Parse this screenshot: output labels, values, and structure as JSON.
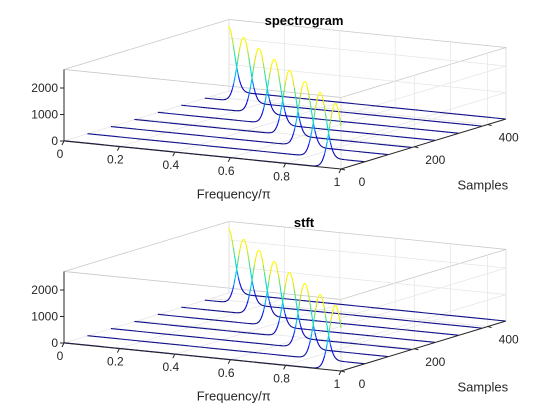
{
  "chart_data": [
    {
      "type": "line",
      "view": "3d-waterfall",
      "title": "spectrogram",
      "xlabel": "Frequency/π",
      "ylabel": "Samples",
      "zlabel": "",
      "xlim": [
        0,
        1
      ],
      "ylim": [
        0,
        450
      ],
      "zlim": [
        0,
        2700
      ],
      "xticks": [
        "0",
        "0.2",
        "0.4",
        "0.6",
        "0.8",
        "1"
      ],
      "xtick_values": [
        0,
        0.2,
        0.4,
        0.6,
        0.8,
        1
      ],
      "yticks": [
        "0",
        "200",
        "400"
      ],
      "ytick_values": [
        0,
        200,
        400
      ],
      "zticks": [
        "0",
        "1000",
        "2000"
      ],
      "ztick_values": [
        0,
        1000,
        2000
      ],
      "grid": true,
      "colormap": [
        "#000080",
        "#0000ff",
        "#00a0ff",
        "#00e0d0",
        "#60e070",
        "#f0e800",
        "#ffff00"
      ],
      "series": [
        {
          "y": 0,
          "peak_frequency": 0.98,
          "peak_value": 2450
        },
        {
          "y": 64,
          "peak_frequency": 0.84,
          "peak_value": 2450
        },
        {
          "y": 128,
          "peak_frequency": 0.7,
          "peak_value": 2450
        },
        {
          "y": 192,
          "peak_frequency": 0.56,
          "peak_value": 2450
        },
        {
          "y": 256,
          "peak_frequency": 0.42,
          "peak_value": 2450
        },
        {
          "y": 320,
          "peak_frequency": 0.28,
          "peak_value": 2450
        },
        {
          "y": 384,
          "peak_frequency": 0.14,
          "peak_value": 2450
        },
        {
          "y": 448,
          "peak_frequency": 0.0,
          "peak_value": 2450
        }
      ],
      "peak_width": 0.022
    },
    {
      "type": "line",
      "view": "3d-waterfall",
      "title": "stft",
      "xlabel": "Frequency/π",
      "ylabel": "Samples",
      "zlabel": "",
      "xlim": [
        0,
        1
      ],
      "ylim": [
        0,
        450
      ],
      "zlim": [
        0,
        2700
      ],
      "xticks": [
        "0",
        "0.2",
        "0.4",
        "0.6",
        "0.8",
        "1"
      ],
      "xtick_values": [
        0,
        0.2,
        0.4,
        0.6,
        0.8,
        1
      ],
      "yticks": [
        "0",
        "200",
        "400"
      ],
      "ytick_values": [
        0,
        200,
        400
      ],
      "zticks": [
        "0",
        "1000",
        "2000"
      ],
      "ztick_values": [
        0,
        1000,
        2000
      ],
      "grid": true,
      "colormap": [
        "#000080",
        "#0000ff",
        "#00a0ff",
        "#00e0d0",
        "#60e070",
        "#f0e800",
        "#ffff00"
      ],
      "series": [
        {
          "y": 0,
          "peak_frequency": 0.98,
          "peak_value": 2450
        },
        {
          "y": 64,
          "peak_frequency": 0.84,
          "peak_value": 2450
        },
        {
          "y": 128,
          "peak_frequency": 0.7,
          "peak_value": 2450
        },
        {
          "y": 192,
          "peak_frequency": 0.56,
          "peak_value": 2450
        },
        {
          "y": 256,
          "peak_frequency": 0.42,
          "peak_value": 2450
        },
        {
          "y": 320,
          "peak_frequency": 0.28,
          "peak_value": 2450
        },
        {
          "y": 384,
          "peak_frequency": 0.14,
          "peak_value": 2450
        },
        {
          "y": 448,
          "peak_frequency": 0.0,
          "peak_value": 2450
        }
      ],
      "peak_width": 0.022
    }
  ]
}
